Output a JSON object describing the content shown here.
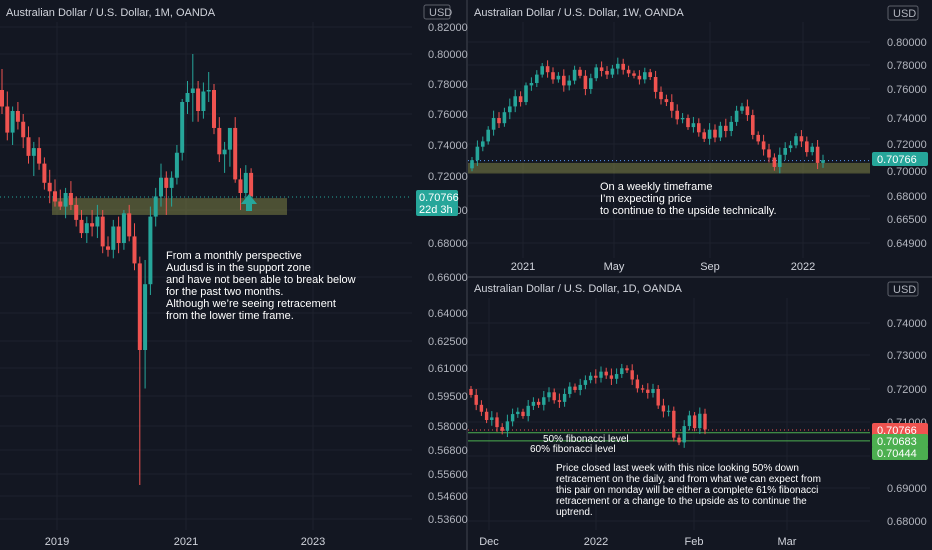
{
  "colors": {
    "up": "#26a69a",
    "down": "#ef5350",
    "zone": "rgba(146,150,76,0.45)",
    "price_badge": "#26a69a",
    "green_badge": "#4caf50",
    "red_badge": "#ef5350",
    "bg": "#131722"
  },
  "chart_data": [
    {
      "type": "candlestick",
      "title": "Australian Dollar / U.S. Dollar, 1M, OANDA",
      "currency": "USD",
      "y_ticks": [
        "0.82000",
        "0.80000",
        "0.78000",
        "0.76000",
        "0.74000",
        "0.72000",
        "0.70000",
        "0.68000",
        "0.66000",
        "0.64000",
        "0.62500",
        "0.61000",
        "0.59500",
        "0.58000",
        "0.56800",
        "0.55600",
        "0.54600",
        "0.53600"
      ],
      "x_ticks": [
        "2019",
        "2021",
        "2023"
      ],
      "last_price": "0.70766",
      "countdown": "22d 3h",
      "support_zone": [
        0.697,
        0.707
      ],
      "candles_ohlc": [
        [
          0.776,
          0.79,
          0.76,
          0.765
        ],
        [
          0.765,
          0.775,
          0.743,
          0.748
        ],
        [
          0.748,
          0.765,
          0.74,
          0.762
        ],
        [
          0.762,
          0.768,
          0.75,
          0.755
        ],
        [
          0.755,
          0.76,
          0.738,
          0.745
        ],
        [
          0.745,
          0.752,
          0.728,
          0.733
        ],
        [
          0.733,
          0.742,
          0.72,
          0.738
        ],
        [
          0.738,
          0.745,
          0.724,
          0.728
        ],
        [
          0.728,
          0.732,
          0.712,
          0.716
        ],
        [
          0.716,
          0.724,
          0.704,
          0.711
        ],
        [
          0.711,
          0.718,
          0.702,
          0.705
        ],
        [
          0.705,
          0.712,
          0.7,
          0.702
        ],
        [
          0.702,
          0.713,
          0.695,
          0.71
        ],
        [
          0.71,
          0.717,
          0.7,
          0.703
        ],
        [
          0.703,
          0.708,
          0.69,
          0.694
        ],
        [
          0.694,
          0.7,
          0.683,
          0.686
        ],
        [
          0.686,
          0.696,
          0.68,
          0.692
        ],
        [
          0.692,
          0.7,
          0.684,
          0.69
        ],
        [
          0.69,
          0.703,
          0.683,
          0.696
        ],
        [
          0.696,
          0.7,
          0.674,
          0.678
        ],
        [
          0.678,
          0.684,
          0.672,
          0.676
        ],
        [
          0.676,
          0.694,
          0.671,
          0.69
        ],
        [
          0.69,
          0.696,
          0.674,
          0.68
        ],
        [
          0.68,
          0.7,
          0.676,
          0.698
        ],
        [
          0.698,
          0.703,
          0.681,
          0.684
        ],
        [
          0.684,
          0.692,
          0.664,
          0.668
        ],
        [
          0.668,
          0.672,
          0.551,
          0.62
        ],
        [
          0.62,
          0.67,
          0.599,
          0.656
        ],
        [
          0.656,
          0.702,
          0.65,
          0.696
        ],
        [
          0.696,
          0.713,
          0.69,
          0.708
        ],
        [
          0.708,
          0.728,
          0.702,
          0.719
        ],
        [
          0.719,
          0.723,
          0.697,
          0.713
        ],
        [
          0.713,
          0.723,
          0.702,
          0.719
        ],
        [
          0.719,
          0.74,
          0.715,
          0.735
        ],
        [
          0.735,
          0.77,
          0.73,
          0.768
        ],
        [
          0.768,
          0.782,
          0.76,
          0.774
        ],
        [
          0.774,
          0.8,
          0.755,
          0.777
        ],
        [
          0.777,
          0.782,
          0.755,
          0.762
        ],
        [
          0.762,
          0.781,
          0.757,
          0.775
        ],
        [
          0.775,
          0.788,
          0.768,
          0.776
        ],
        [
          0.776,
          0.78,
          0.747,
          0.751
        ],
        [
          0.751,
          0.758,
          0.729,
          0.734
        ],
        [
          0.734,
          0.742,
          0.722,
          0.737
        ],
        [
          0.737,
          0.75,
          0.726,
          0.751
        ],
        [
          0.751,
          0.758,
          0.716,
          0.718
        ],
        [
          0.718,
          0.725,
          0.7,
          0.71
        ],
        [
          0.71,
          0.727,
          0.705,
          0.722
        ],
        [
          0.722,
          0.725,
          0.708,
          0.708
        ]
      ]
    },
    {
      "type": "candlestick",
      "title": "Australian Dollar / U.S. Dollar, 1W, OANDA",
      "currency": "USD",
      "y_ticks": [
        "0.80000",
        "0.78000",
        "0.76000",
        "0.74000",
        "0.72000",
        "0.70000",
        "0.68000",
        "0.66500",
        "0.64900"
      ],
      "x_ticks": [
        "2021",
        "May",
        "Sep",
        "2022"
      ],
      "last_price": "0.70766",
      "support_zone": [
        0.698,
        0.706
      ],
      "closes": [
        0.708,
        0.718,
        0.722,
        0.731,
        0.74,
        0.736,
        0.744,
        0.748,
        0.755,
        0.751,
        0.763,
        0.765,
        0.772,
        0.779,
        0.774,
        0.768,
        0.771,
        0.763,
        0.767,
        0.776,
        0.771,
        0.76,
        0.769,
        0.778,
        0.775,
        0.772,
        0.777,
        0.781,
        0.776,
        0.773,
        0.771,
        0.768,
        0.774,
        0.77,
        0.758,
        0.753,
        0.751,
        0.745,
        0.739,
        0.74,
        0.733,
        0.736,
        0.729,
        0.724,
        0.731,
        0.725,
        0.734,
        0.73,
        0.737,
        0.745,
        0.748,
        0.742,
        0.727,
        0.722,
        0.716,
        0.71,
        0.703,
        0.712,
        0.717,
        0.719,
        0.726,
        0.722,
        0.714,
        0.718,
        0.706,
        0.708
      ]
    },
    {
      "type": "candlestick",
      "title": "Australian Dollar / U.S. Dollar, 1D, OANDA",
      "currency": "USD",
      "y_ticks": [
        "0.74000",
        "0.73000",
        "0.72000",
        "0.71000",
        "0.70000",
        "0.69000",
        "0.68000"
      ],
      "x_ticks": [
        "Dec",
        "2022",
        "Feb",
        "Mar"
      ],
      "last_price": "0.70766",
      "level_50": "0.70683",
      "level_61": "0.70444",
      "closes": [
        0.7182,
        0.7152,
        0.7131,
        0.7106,
        0.7114,
        0.7085,
        0.7074,
        0.7102,
        0.7124,
        0.7131,
        0.7118,
        0.7149,
        0.7161,
        0.7152,
        0.7175,
        0.719,
        0.7166,
        0.7161,
        0.7185,
        0.7207,
        0.7197,
        0.7212,
        0.7226,
        0.7239,
        0.7233,
        0.7251,
        0.724,
        0.723,
        0.7244,
        0.7261,
        0.7255,
        0.7228,
        0.7202,
        0.7198,
        0.7188,
        0.72,
        0.715,
        0.7132,
        0.7134,
        0.7054,
        0.704,
        0.7088,
        0.712,
        0.7082,
        0.7125,
        0.7078
      ]
    }
  ],
  "labels": {
    "monthly_note": [
      "From a monthly perspective",
      " Audusd  is in the support zone",
      "and have not been able to break below",
      "for the past two months.",
      "Although we’re seeing retracement",
      "from the lower time frame."
    ],
    "weekly_note": [
      "On a weekly timeframe",
      "I’m expecting price",
      " to continue to the upside technically."
    ],
    "fib_50": "50% fibonacci level",
    "fib_60": "60% fibonacci level",
    "daily_note": [
      "Price closed last week with this nice looking 50% down",
      "retracement on the daily, and from what we can expect from",
      "this pair on monday will be either a complete 61% fibonacci",
      "retracement or a change to the upside as to continue the",
      "uptrend."
    ]
  }
}
